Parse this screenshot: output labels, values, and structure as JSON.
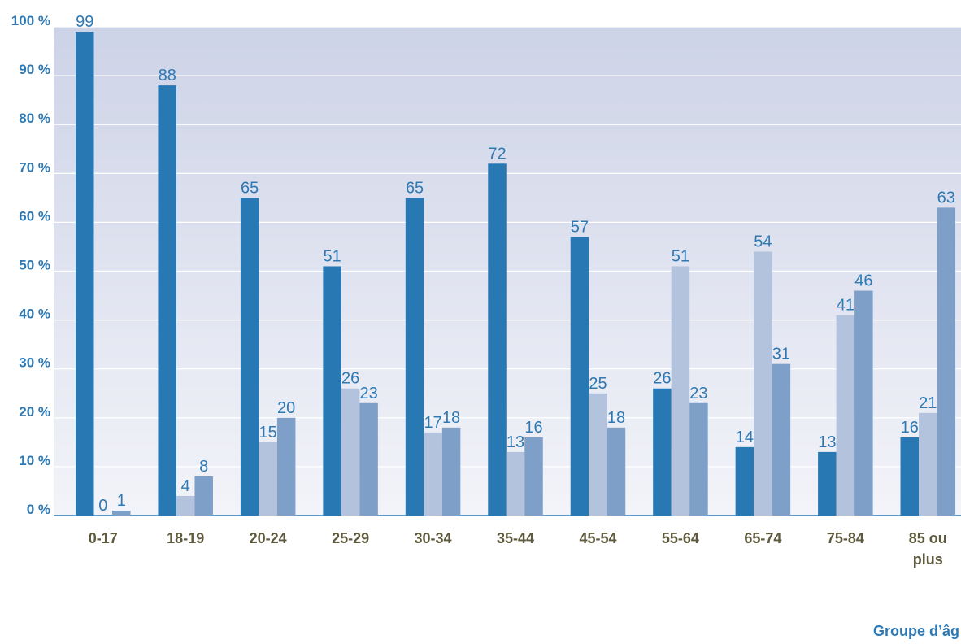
{
  "chart_data": {
    "type": "bar",
    "categories": [
      [
        "0-17"
      ],
      [
        "18-19"
      ],
      [
        "20-24"
      ],
      [
        "25-29"
      ],
      [
        "30-34"
      ],
      [
        "35-44"
      ],
      [
        "45-54"
      ],
      [
        "55-64"
      ],
      [
        "65-74"
      ],
      [
        "75-84"
      ],
      [
        "85 ou",
        "plus"
      ]
    ],
    "series": [
      {
        "color": "#2878b3",
        "values": [
          99,
          88,
          65,
          51,
          65,
          72,
          57,
          26,
          14,
          13,
          16
        ]
      },
      {
        "color": "#b3c3dd",
        "values": [
          0,
          4,
          15,
          26,
          17,
          13,
          25,
          51,
          54,
          41,
          21
        ]
      },
      {
        "color": "#7e9fc7",
        "values": [
          1,
          8,
          20,
          23,
          18,
          16,
          18,
          23,
          31,
          46,
          63
        ]
      }
    ],
    "ylim": [
      0,
      100
    ],
    "yticks": [
      0,
      10,
      20,
      30,
      40,
      50,
      60,
      70,
      80,
      90,
      100
    ],
    "ytick_suffix": " %",
    "xlabel": "Groupe d’âg",
    "grid": true,
    "background_gradient": [
      "#cdd3e7",
      "#f3f4f9"
    ],
    "label_color": "#2e79b3",
    "xtick_color": "#5e5a3e"
  }
}
